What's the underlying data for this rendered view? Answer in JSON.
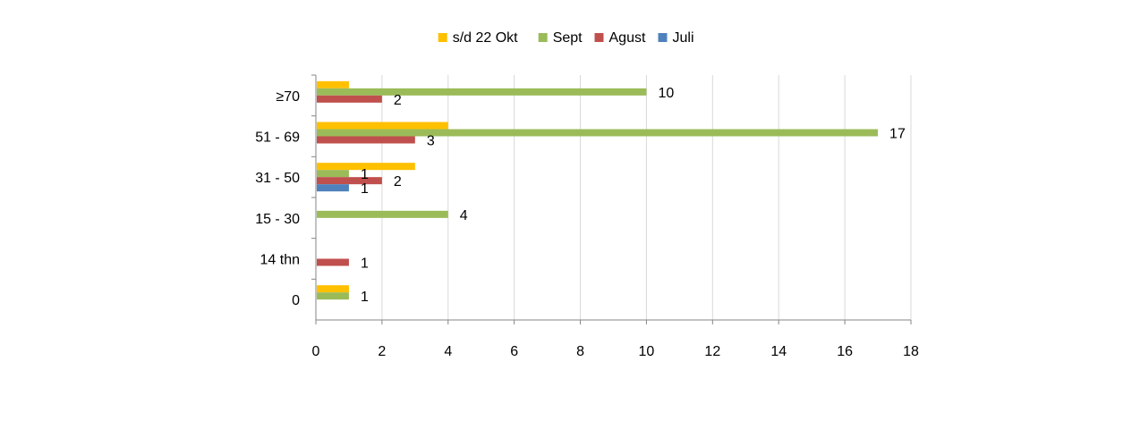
{
  "chart_data": {
    "type": "bar",
    "orientation": "horizontal",
    "categories": [
      "0",
      "14 thn",
      "15 - 30",
      "31 - 50",
      "51 - 69",
      "≥70"
    ],
    "series": [
      {
        "name": "s/d 22 Okt",
        "color": "#FFC000",
        "values": [
          1,
          null,
          null,
          3,
          4,
          1
        ],
        "show_labels": false
      },
      {
        "name": "Sept",
        "color": "#9BBB59",
        "values": [
          1,
          null,
          4,
          1,
          17,
          10
        ],
        "show_labels": true
      },
      {
        "name": "Agust",
        "color": "#C0504D",
        "values": [
          null,
          1,
          null,
          2,
          3,
          2
        ],
        "show_labels": true
      },
      {
        "name": "Juli",
        "color": "#4F81BD",
        "values": [
          null,
          null,
          null,
          1,
          null,
          null
        ],
        "show_labels": true
      }
    ],
    "xlim": [
      0,
      18
    ],
    "xticks": [
      "0",
      "2",
      "4",
      "6",
      "8",
      "10",
      "12",
      "14",
      "16",
      "18"
    ],
    "grid": "vertical",
    "legend": {
      "position": "top",
      "order": [
        "s/d 22 Okt",
        "Sept",
        "Agust",
        "Juli"
      ]
    },
    "title": "",
    "xlabel": "",
    "ylabel": ""
  }
}
